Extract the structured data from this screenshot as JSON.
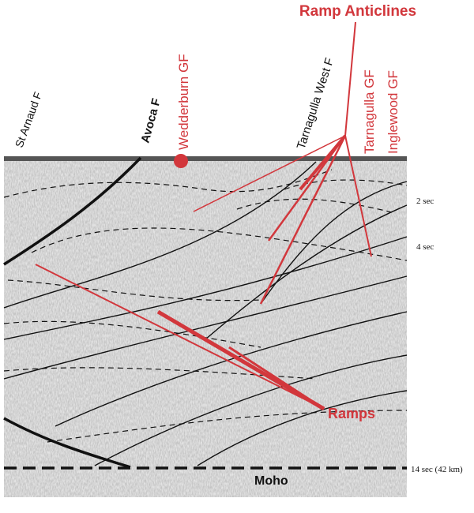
{
  "title": "Ramp Anticlines",
  "faults": {
    "st_arnaud": "St Arnaud F",
    "avoca": "Avoca F",
    "wedderburn": "Wedderburn GF",
    "tarnagulla_west": "Tarnagulla West F",
    "tarnagulla": "Tarnagulla GF",
    "inglewood": "Inglewood GF"
  },
  "time_labels": {
    "two": "2 sec",
    "four": "4 sec",
    "fourteen": "14 sec (42 km)"
  },
  "ramps": "Ramps",
  "moho": "Moho"
}
